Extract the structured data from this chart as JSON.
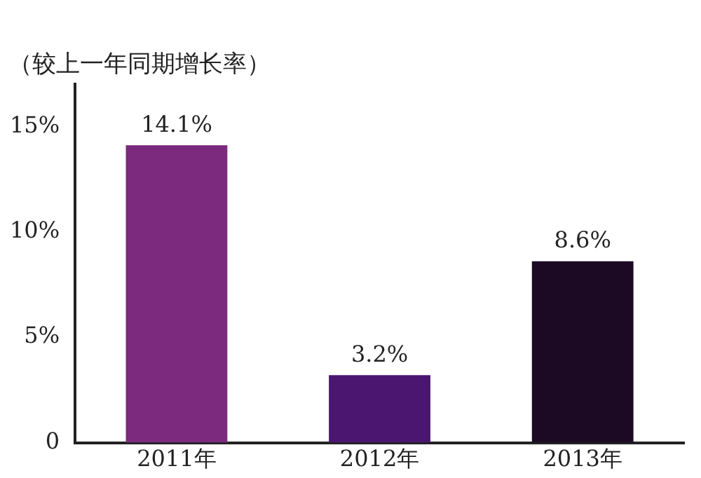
{
  "chart_data": {
    "type": "bar",
    "ylabel": "（较上一年同期增长率）",
    "categories": [
      "2011年",
      "2012年",
      "2013年"
    ],
    "values": [
      14.1,
      3.2,
      8.6
    ],
    "value_labels": [
      "14.1%",
      "3.2%",
      "8.6%"
    ],
    "colors": [
      "#7b2a7e",
      "#4a1670",
      "#1c0a24"
    ],
    "ylim": [
      0,
      17
    ],
    "yticks": [
      {
        "value": 0,
        "label": "0"
      },
      {
        "value": 5,
        "label": "5%"
      },
      {
        "value": 10,
        "label": "10%"
      },
      {
        "value": 15,
        "label": "15%"
      }
    ],
    "grid": false,
    "legend": false
  }
}
